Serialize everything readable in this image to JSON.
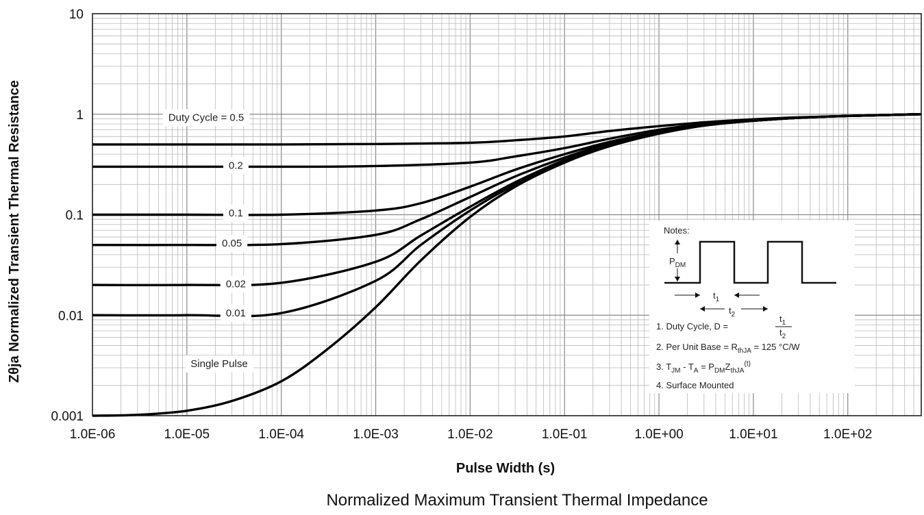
{
  "chart_data": {
    "type": "line",
    "title": "",
    "caption": "Normalized Maximum Transient Thermal Impedance",
    "xlabel": "Pulse Width (s)",
    "ylabel": "Zθja Normalized Transient Thermal Resistance",
    "x_scale": "log",
    "y_scale": "log",
    "xlim": [
      1e-06,
      600
    ],
    "ylim": [
      0.001,
      10
    ],
    "grid": true,
    "x_ticks": [
      {
        "v": 1e-06,
        "label": "1.0E-06"
      },
      {
        "v": 1e-05,
        "label": "1.0E-05"
      },
      {
        "v": 0.0001,
        "label": "1.0E-04"
      },
      {
        "v": 0.001,
        "label": "1.0E-03"
      },
      {
        "v": 0.01,
        "label": "1.0E-02"
      },
      {
        "v": 0.1,
        "label": "1.0E-01"
      },
      {
        "v": 1,
        "label": "1.0E+00"
      },
      {
        "v": 10,
        "label": "1.0E+01"
      },
      {
        "v": 100,
        "label": "1.0E+02"
      }
    ],
    "y_ticks": [
      {
        "v": 0.001,
        "label": "0.001"
      },
      {
        "v": 0.01,
        "label": "0.01"
      },
      {
        "v": 0.1,
        "label": "0.1"
      },
      {
        "v": 1,
        "label": "1"
      },
      {
        "v": 10,
        "label": "10"
      }
    ],
    "series": [
      {
        "label": "Duty Cycle = 0.5",
        "label_at": [
          1.6e-05,
          0.93
        ],
        "x": [
          1e-06,
          1e-05,
          0.0001,
          0.001,
          0.01,
          0.03,
          0.1,
          0.3,
          1,
          3,
          10,
          30,
          100,
          600
        ],
        "y": [
          0.5,
          0.5,
          0.5,
          0.505,
          0.52,
          0.55,
          0.6,
          0.68,
          0.76,
          0.83,
          0.89,
          0.93,
          0.96,
          1.0
        ]
      },
      {
        "label": "0.2",
        "label_at": [
          3.3e-05,
          0.31
        ],
        "x": [
          1e-06,
          1e-05,
          0.0001,
          0.001,
          0.01,
          0.03,
          0.1,
          0.3,
          1,
          3,
          10,
          30,
          100,
          600
        ],
        "y": [
          0.3,
          0.3,
          0.3,
          0.305,
          0.33,
          0.38,
          0.46,
          0.57,
          0.7,
          0.8,
          0.87,
          0.92,
          0.96,
          1.0
        ]
      },
      {
        "label": "0.1",
        "label_at": [
          3.3e-05,
          0.104
        ],
        "x": [
          1e-06,
          1e-05,
          0.0001,
          0.001,
          0.003,
          0.01,
          0.03,
          0.1,
          0.3,
          1,
          3,
          10,
          30,
          100,
          600
        ],
        "y": [
          0.1,
          0.1,
          0.1,
          0.11,
          0.13,
          0.19,
          0.28,
          0.4,
          0.53,
          0.67,
          0.79,
          0.87,
          0.92,
          0.96,
          1.0
        ]
      },
      {
        "label": "0.05",
        "label_at": [
          3e-05,
          0.052
        ],
        "x": [
          1e-06,
          1e-05,
          0.0001,
          0.001,
          0.003,
          0.01,
          0.03,
          0.1,
          0.3,
          1,
          3,
          10,
          30,
          100,
          600
        ],
        "y": [
          0.05,
          0.05,
          0.051,
          0.063,
          0.09,
          0.15,
          0.24,
          0.37,
          0.51,
          0.66,
          0.78,
          0.86,
          0.92,
          0.96,
          1.0
        ]
      },
      {
        "label": "0.02",
        "label_at": [
          3.3e-05,
          0.0205
        ],
        "x": [
          1e-06,
          1e-05,
          0.0001,
          0.001,
          0.003,
          0.01,
          0.03,
          0.1,
          0.3,
          1,
          3,
          10,
          30,
          100,
          600
        ],
        "y": [
          0.02,
          0.02,
          0.021,
          0.034,
          0.062,
          0.12,
          0.21,
          0.35,
          0.5,
          0.65,
          0.78,
          0.86,
          0.92,
          0.96,
          1.0
        ]
      },
      {
        "label": "0.01",
        "label_at": [
          3.3e-05,
          0.0105
        ],
        "x": [
          1e-06,
          1e-05,
          0.0001,
          0.001,
          0.003,
          0.01,
          0.03,
          0.1,
          0.3,
          1,
          3,
          10,
          30,
          100,
          600
        ],
        "y": [
          0.01,
          0.01,
          0.0105,
          0.022,
          0.05,
          0.11,
          0.2,
          0.34,
          0.49,
          0.65,
          0.77,
          0.86,
          0.92,
          0.96,
          1.0
        ]
      },
      {
        "label": "Single Pulse",
        "label_at": [
          2.2e-05,
          0.0033
        ],
        "x": [
          1e-06,
          3e-06,
          1e-05,
          3e-05,
          0.0001,
          0.0003,
          0.001,
          0.003,
          0.01,
          0.03,
          0.1,
          0.3,
          1,
          3,
          10,
          30,
          100,
          600
        ],
        "y": [
          0.001,
          0.00102,
          0.00112,
          0.0014,
          0.0022,
          0.0045,
          0.012,
          0.035,
          0.095,
          0.19,
          0.33,
          0.48,
          0.64,
          0.77,
          0.86,
          0.92,
          0.96,
          1.0
        ]
      }
    ]
  },
  "notes": {
    "title": "Notes:",
    "pdm_main": "P",
    "pdm_sub": "DM",
    "t1_main": "t",
    "t1_sub": "1",
    "t2_main": "t",
    "t2_sub": "2",
    "n1_text": "1. Duty Cycle, D =",
    "n2_a": "2. Per Unit Base = R",
    "n2_sub": "thJA",
    "n2_b": " = 125 °C/W",
    "n3_a": "3. T",
    "n3_s1": "JM",
    "n3_b": " - T",
    "n3_s2": "A",
    "n3_c": " = P",
    "n3_s3": "DM",
    "n3_d": "Z",
    "n3_s4": "thJA",
    "n3_sup": "(t)",
    "n4": "4. Surface Mounted"
  }
}
